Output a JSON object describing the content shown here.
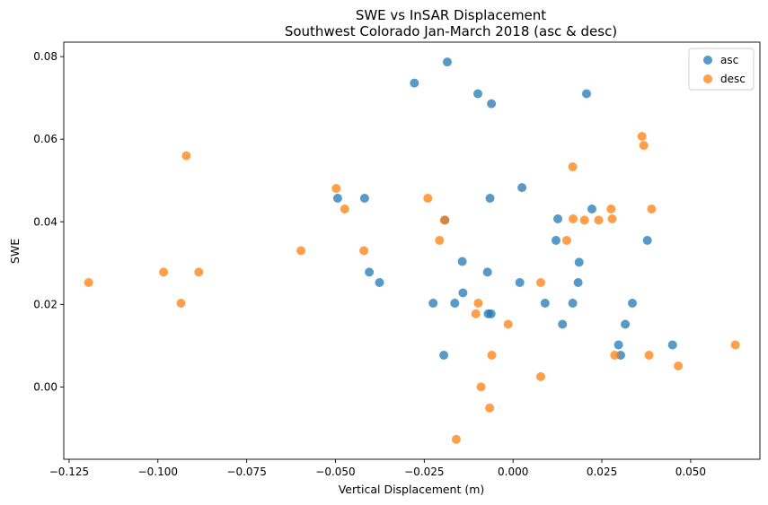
{
  "chart_data": {
    "type": "scatter",
    "title": "SWE vs InSAR Displacement",
    "subtitle": "Southwest Colorado Jan-March 2018 (asc & desc)",
    "xlabel": "Vertical Displacement (m)",
    "ylabel": "SWE",
    "xlim": [
      -0.1265,
      0.0695
    ],
    "ylim": [
      -0.0175,
      0.0835
    ],
    "grid": false,
    "legend_position": "top-right",
    "x_ticks": [
      -0.125,
      -0.1,
      -0.075,
      -0.05,
      -0.025,
      0.0,
      0.025,
      0.05
    ],
    "x_tick_labels": [
      "−0.125",
      "−0.100",
      "−0.075",
      "−0.050",
      "−0.025",
      "0.000",
      "0.025",
      "0.050"
    ],
    "y_ticks": [
      0.0,
      0.02,
      0.04,
      0.06,
      0.08
    ],
    "y_tick_labels": [
      "0.00",
      "0.02",
      "0.04",
      "0.06",
      "0.08"
    ],
    "series": [
      {
        "name": "asc",
        "color": "#1f77b4",
        "points": [
          [
            -0.0185,
            0.0787
          ],
          [
            -0.0278,
            0.0736
          ],
          [
            -0.0099,
            0.071
          ],
          [
            -0.0061,
            0.0686
          ],
          [
            0.0207,
            0.071
          ],
          [
            0.0025,
            0.0483
          ],
          [
            -0.0494,
            0.0457
          ],
          [
            -0.0418,
            0.0457
          ],
          [
            -0.0065,
            0.0457
          ],
          [
            0.0222,
            0.0431
          ],
          [
            0.0126,
            0.0407
          ],
          [
            -0.0192,
            0.0404
          ],
          [
            0.0121,
            0.0355
          ],
          [
            0.0378,
            0.0355
          ],
          [
            -0.0143,
            0.0304
          ],
          [
            0.0186,
            0.0302
          ],
          [
            -0.0405,
            0.0278
          ],
          [
            -0.0072,
            0.0278
          ],
          [
            -0.0376,
            0.0253
          ],
          [
            0.0019,
            0.0253
          ],
          [
            0.0183,
            0.0253
          ],
          [
            -0.0141,
            0.0228
          ],
          [
            -0.0225,
            0.0203
          ],
          [
            -0.0164,
            0.0203
          ],
          [
            0.009,
            0.0203
          ],
          [
            0.0168,
            0.0203
          ],
          [
            0.0336,
            0.0203
          ],
          [
            -0.007,
            0.0177
          ],
          [
            -0.0062,
            0.0177
          ],
          [
            0.0139,
            0.0152
          ],
          [
            0.0316,
            0.0152
          ],
          [
            0.0297,
            0.0102
          ],
          [
            0.0449,
            0.0102
          ],
          [
            -0.0195,
            0.0077
          ],
          [
            0.0303,
            0.0077
          ]
        ]
      },
      {
        "name": "desc",
        "color": "#ff7f0e",
        "points": [
          [
            -0.1195,
            0.0253
          ],
          [
            -0.0984,
            0.0278
          ],
          [
            -0.0885,
            0.0278
          ],
          [
            -0.0935,
            0.0203
          ],
          [
            -0.092,
            0.056
          ],
          [
            -0.0597,
            0.033
          ],
          [
            -0.0498,
            0.0481
          ],
          [
            -0.0474,
            0.0431
          ],
          [
            -0.042,
            0.033
          ],
          [
            -0.024,
            0.0457
          ],
          [
            -0.0193,
            0.0404
          ],
          [
            -0.0207,
            0.0355
          ],
          [
            -0.0098,
            0.0203
          ],
          [
            -0.0105,
            0.0177
          ],
          [
            -0.0014,
            0.0152
          ],
          [
            -0.006,
            0.0077
          ],
          [
            -0.009,
            0.0
          ],
          [
            -0.0066,
            -0.0051
          ],
          [
            -0.016,
            -0.0127
          ],
          [
            0.0078,
            0.0253
          ],
          [
            0.0078,
            0.0025
          ],
          [
            0.0151,
            0.0355
          ],
          [
            0.0168,
            0.0533
          ],
          [
            0.0169,
            0.0407
          ],
          [
            0.0201,
            0.0404
          ],
          [
            0.0241,
            0.0404
          ],
          [
            0.0276,
            0.0431
          ],
          [
            0.0279,
            0.0407
          ],
          [
            0.0363,
            0.0607
          ],
          [
            0.0368,
            0.0585
          ],
          [
            0.039,
            0.0431
          ],
          [
            0.0286,
            0.0077
          ],
          [
            0.0383,
            0.0077
          ],
          [
            0.0465,
            0.0051
          ],
          [
            0.0626,
            0.0102
          ]
        ]
      }
    ]
  }
}
